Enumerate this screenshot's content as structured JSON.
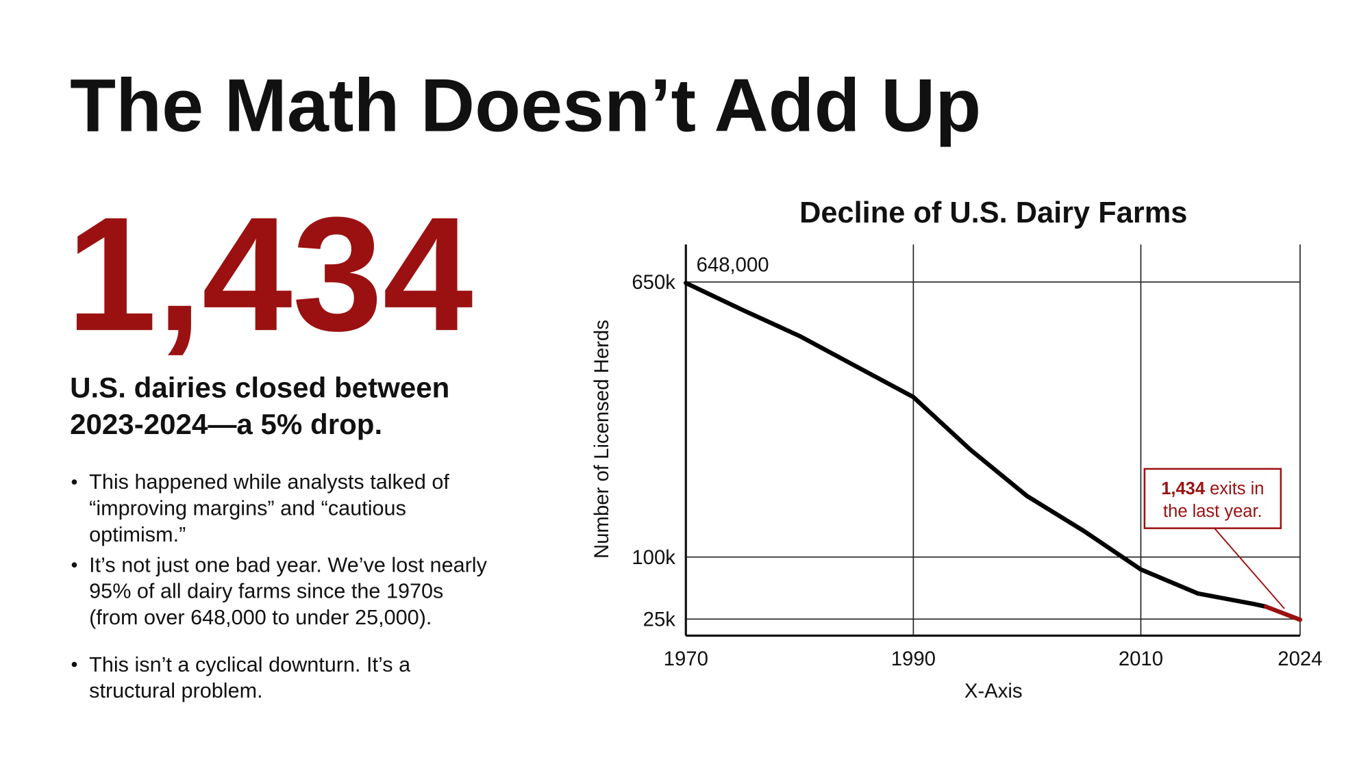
{
  "title": "The Math Doesn’t Add Up",
  "headline": "1,434",
  "subtitle": [
    "U.S. dairies closed between",
    "2023-2024—a 5% drop."
  ],
  "bullets": [
    [
      "This happened while analysts talked of",
      "“improving margins” and “cautious",
      "optimism.”"
    ],
    [
      "It’s not just one bad year. We’ve lost nearly",
      "95% of all dairy farms since the 1970s",
      "(from over 648,000 to under 25,000)."
    ],
    [
      "This isn’t a cyclical downturn. It’s a",
      "structural problem."
    ]
  ],
  "chart_data": {
    "type": "line",
    "title": "Decline of U.S. Dairy Farms",
    "xlabel": "X-Axis",
    "ylabel": "Number of Licensed Herds",
    "x": [
      1970,
      1975,
      1980,
      1985,
      1990,
      1995,
      2000,
      2005,
      2010,
      2015,
      2020,
      2021,
      2024
    ],
    "series": [
      {
        "color": "#000000",
        "values": [
          648,
          594,
          542,
          481,
          420,
          315,
          222,
          152,
          85,
          56,
          43,
          40,
          24
        ],
        "highlight_from_index": 11,
        "highlight_color": "#9b1111"
      }
    ],
    "start_label": "648,000",
    "annotation": {
      "bold": "1,434",
      "lines": [
        "exits in",
        "the last year."
      ],
      "color": "#9b1111"
    },
    "xlim": [
      1970,
      2024
    ],
    "xticks": [
      1970,
      1990,
      2010,
      2024
    ],
    "ylim": [
      0,
      725
    ],
    "yticks": [
      {
        "value": 25,
        "label": "25k"
      },
      {
        "value": 100,
        "label": "100k"
      },
      {
        "value": 650,
        "label": "650k"
      }
    ],
    "grid": true
  }
}
